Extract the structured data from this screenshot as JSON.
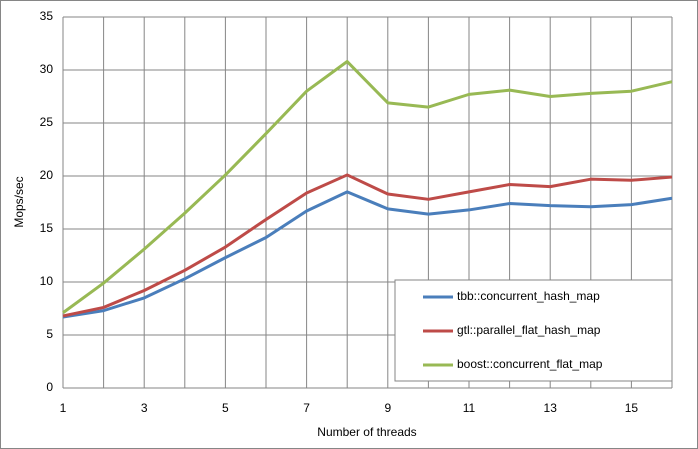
{
  "chart_data": {
    "type": "line",
    "x_label": "Number of threads",
    "y_label": "Mops/sec",
    "x": [
      1,
      2,
      3,
      4,
      5,
      6,
      7,
      8,
      9,
      10,
      11,
      12,
      13,
      14,
      15,
      16
    ],
    "series": [
      {
        "name": "tbb::concurrent_hash_map",
        "color": "#4a7ebb",
        "values": [
          6.7,
          7.3,
          8.5,
          10.3,
          12.3,
          14.2,
          16.7,
          18.5,
          16.9,
          16.4,
          16.8,
          17.4,
          17.2,
          17.1,
          17.3,
          17.9
        ]
      },
      {
        "name": "gtl::parallel_flat_hash_map",
        "color": "#be4b48",
        "values": [
          6.8,
          7.6,
          9.2,
          11.1,
          13.3,
          15.9,
          18.4,
          20.1,
          18.3,
          17.8,
          18.5,
          19.2,
          19.0,
          19.7,
          19.6,
          19.9
        ]
      },
      {
        "name": "boost::concurrent_flat_map",
        "color": "#98b954",
        "values": [
          7.1,
          9.9,
          13.1,
          16.5,
          20.1,
          24.0,
          28.0,
          30.8,
          26.9,
          26.5,
          27.7,
          28.1,
          27.5,
          27.8,
          28.0,
          28.9
        ]
      }
    ],
    "xlim": [
      1,
      16
    ],
    "xticks": [
      1,
      3,
      5,
      7,
      9,
      11,
      13,
      15
    ],
    "x_minor_ticks": [
      2,
      4,
      6,
      8,
      10,
      12,
      14,
      16
    ],
    "ylim": [
      0,
      35
    ],
    "yticks": [
      0,
      5,
      10,
      15,
      20,
      25,
      30,
      35
    ],
    "grid": true,
    "legend": "lower-right"
  }
}
